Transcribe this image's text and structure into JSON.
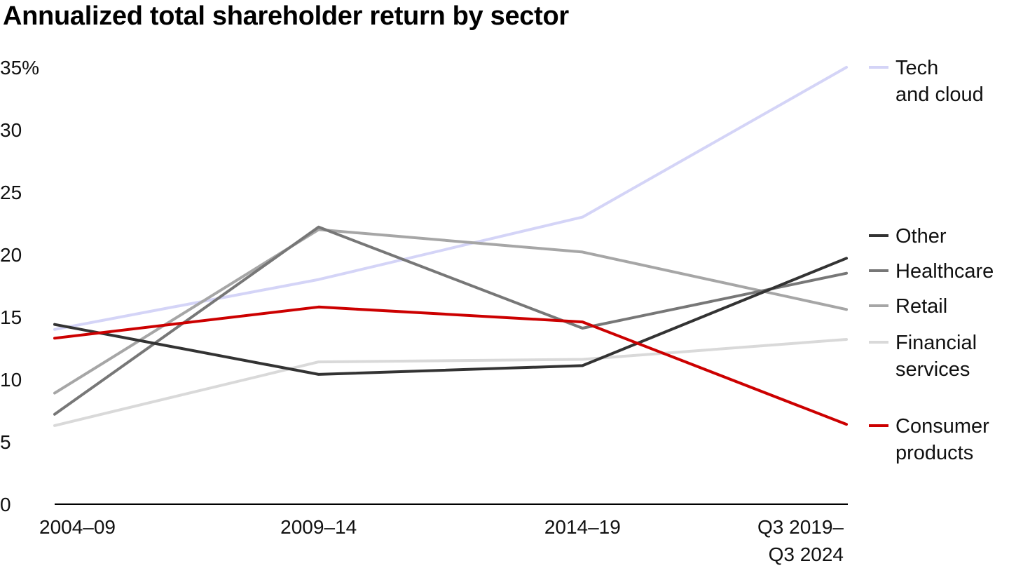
{
  "chart_data": {
    "type": "line",
    "title": "Annualized total shareholder return by sector",
    "xlabel": "",
    "ylabel": "",
    "x": [
      "2004–09",
      "2009–14",
      "2014–19",
      [
        "Q3 2019–",
        "Q3 2024"
      ]
    ],
    "ylim": [
      0,
      35
    ],
    "yticks": [
      0,
      5,
      10,
      15,
      20,
      25,
      30,
      35
    ],
    "ytick_labels": [
      "0",
      "5",
      "10",
      "15",
      "20",
      "25",
      "30",
      "35%"
    ],
    "grid": false,
    "legend_placement": "right",
    "series": [
      {
        "name": [
          "Tech",
          "and cloud"
        ],
        "color": "#d4d4f7",
        "values": [
          14,
          18,
          23,
          35
        ]
      },
      {
        "name": [
          "Other"
        ],
        "color": "#333333",
        "values": [
          14.4,
          10.4,
          11.1,
          19.7
        ]
      },
      {
        "name": [
          "Healthcare"
        ],
        "color": "#777777",
        "values": [
          7.2,
          22.2,
          14.1,
          18.5
        ]
      },
      {
        "name": [
          "Retail"
        ],
        "color": "#a6a6a6",
        "values": [
          8.9,
          22,
          20.2,
          15.6
        ]
      },
      {
        "name": [
          "Financial",
          "services"
        ],
        "color": "#d9d9d9",
        "values": [
          6.3,
          11.4,
          11.6,
          13.2
        ]
      },
      {
        "name": [
          "Consumer",
          "products"
        ],
        "color": "#cc0000",
        "values": [
          13.3,
          15.8,
          14.6,
          6.4
        ]
      }
    ]
  }
}
